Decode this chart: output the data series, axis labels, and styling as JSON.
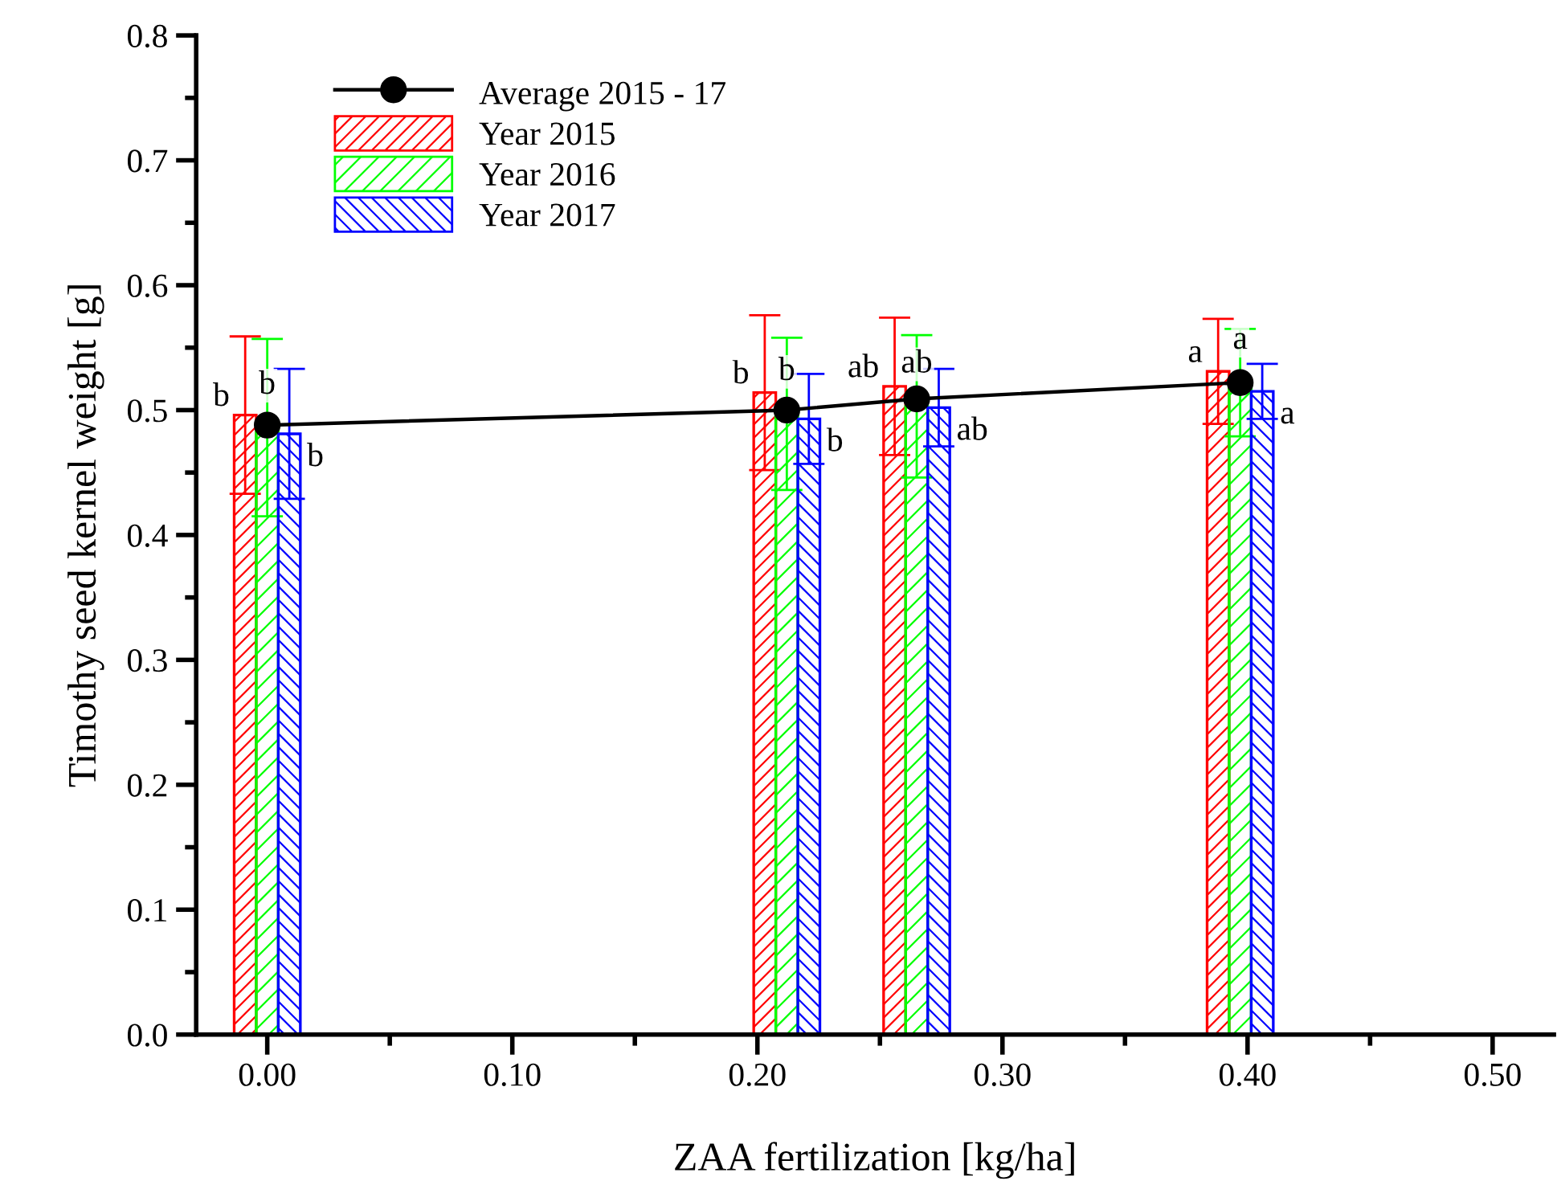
{
  "chart_data": {
    "type": "bar",
    "xlabel": "ZAA fertilization [kg/ha]",
    "ylabel": "Timothy seed kernel weight [g]",
    "x": [
      0.0,
      0.212,
      0.265,
      0.397
    ],
    "series": [
      {
        "name": "Average 2015 - 17",
        "type": "line",
        "color": "#000000",
        "marker": "circle",
        "values": [
          0.488,
          0.5,
          0.509,
          0.522
        ]
      },
      {
        "name": "Year 2015",
        "color": "#ff0000",
        "values": [
          0.496,
          0.514,
          0.519,
          0.531
        ],
        "value_labels": [
          "b",
          "b",
          "ab",
          "a"
        ],
        "errors": [
          0.063,
          0.062,
          0.055,
          0.042
        ]
      },
      {
        "name": "Year 2016",
        "color": "#00ff00",
        "values": [
          0.486,
          0.497,
          0.503,
          0.522
        ],
        "value_labels": [
          "b",
          "b",
          "ab",
          "a"
        ],
        "errors": [
          0.071,
          0.061,
          0.057,
          0.043
        ]
      },
      {
        "name": "Year 2017",
        "color": "#0000ff",
        "values": [
          0.481,
          0.493,
          0.502,
          0.515
        ],
        "value_labels": [
          "b",
          "b",
          "ab",
          "a"
        ],
        "errors": [
          0.052,
          0.036,
          0.031,
          0.022
        ]
      }
    ],
    "xlim": [
      -0.029,
      0.525
    ],
    "ylim": [
      0.0,
      0.8
    ],
    "xticks": [
      {
        "value": 0.0,
        "label": "0.00"
      },
      {
        "value": 0.05,
        "label": null
      },
      {
        "value": 0.1,
        "label": "0.10"
      },
      {
        "value": 0.15,
        "label": null
      },
      {
        "value": 0.2,
        "label": "0.20"
      },
      {
        "value": 0.25,
        "label": null
      },
      {
        "value": 0.3,
        "label": "0.30"
      },
      {
        "value": 0.35,
        "label": null
      },
      {
        "value": 0.4,
        "label": "0.40"
      },
      {
        "value": 0.45,
        "label": null
      },
      {
        "value": 0.5,
        "label": "0.50"
      }
    ],
    "yticks": [
      {
        "value": 0.0,
        "label": "0.0"
      },
      {
        "value": 0.05,
        "label": null
      },
      0.1,
      {
        "value": 0.15,
        "label": null
      },
      0.2,
      {
        "value": 0.25,
        "label": null
      },
      0.3,
      {
        "value": 0.35,
        "label": null
      },
      0.4,
      {
        "value": 0.45,
        "label": null
      },
      0.5,
      {
        "value": 0.55,
        "label": null
      },
      0.6,
      {
        "value": 0.65,
        "label": null
      },
      0.7,
      {
        "value": 0.75,
        "label": null
      },
      0.8
    ],
    "grid": false,
    "legend": "top left"
  }
}
